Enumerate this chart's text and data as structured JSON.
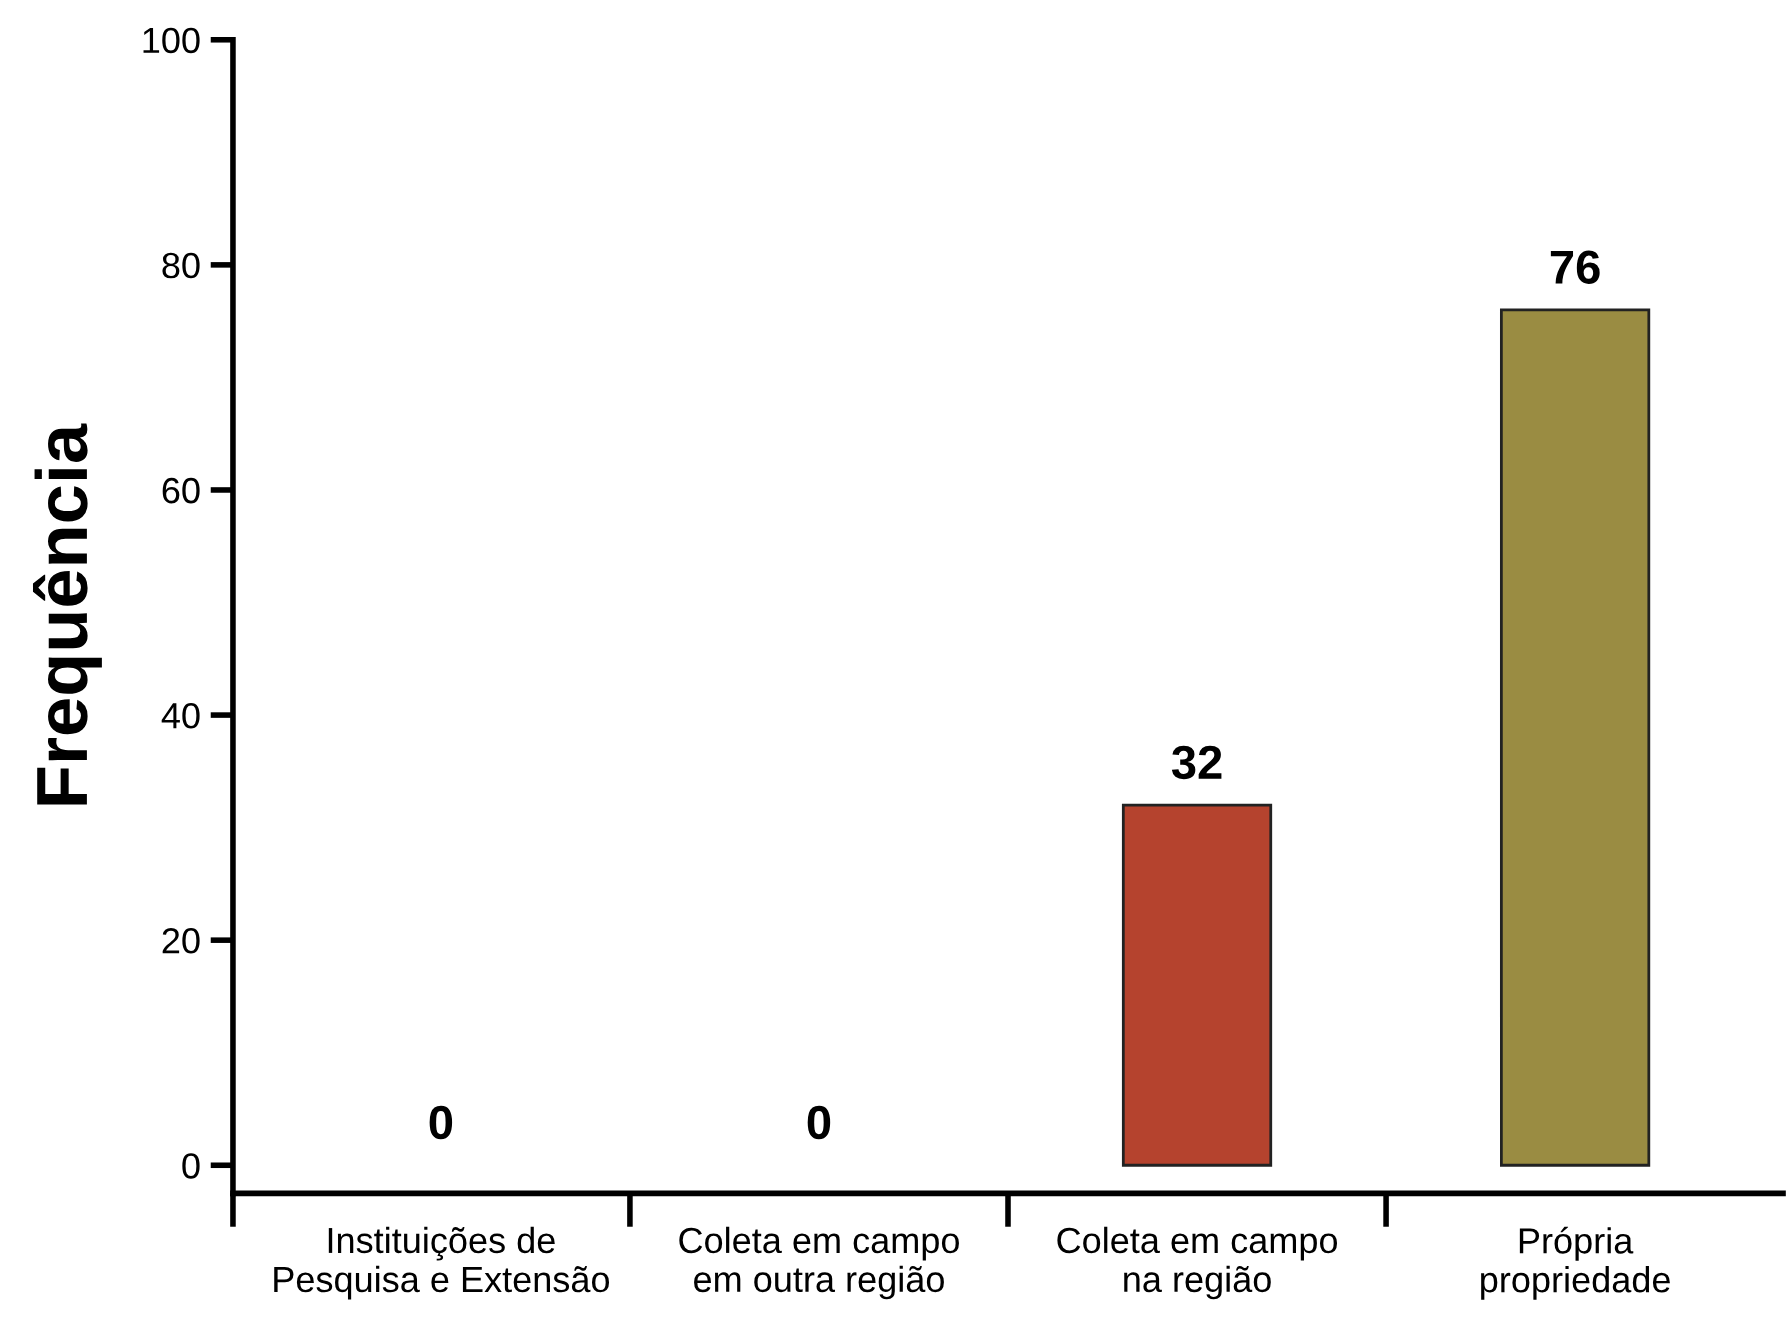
{
  "chart_data": {
    "type": "bar",
    "ylabel": "Frequência",
    "categories": [
      "Instituições de\nPesquisa e Extensão",
      "Coleta em campo\nem outra região",
      "Coleta em campo\nna região",
      "Própria\npropriedade"
    ],
    "values": [
      0,
      0,
      32,
      76
    ],
    "colors": [
      null,
      null,
      "#b5432e",
      "#9a8c42"
    ],
    "ylim": [
      -2.5,
      100
    ],
    "yticks": [
      0,
      20,
      40,
      60,
      80,
      100
    ],
    "data_labels": true,
    "grid": false,
    "legend": false
  }
}
